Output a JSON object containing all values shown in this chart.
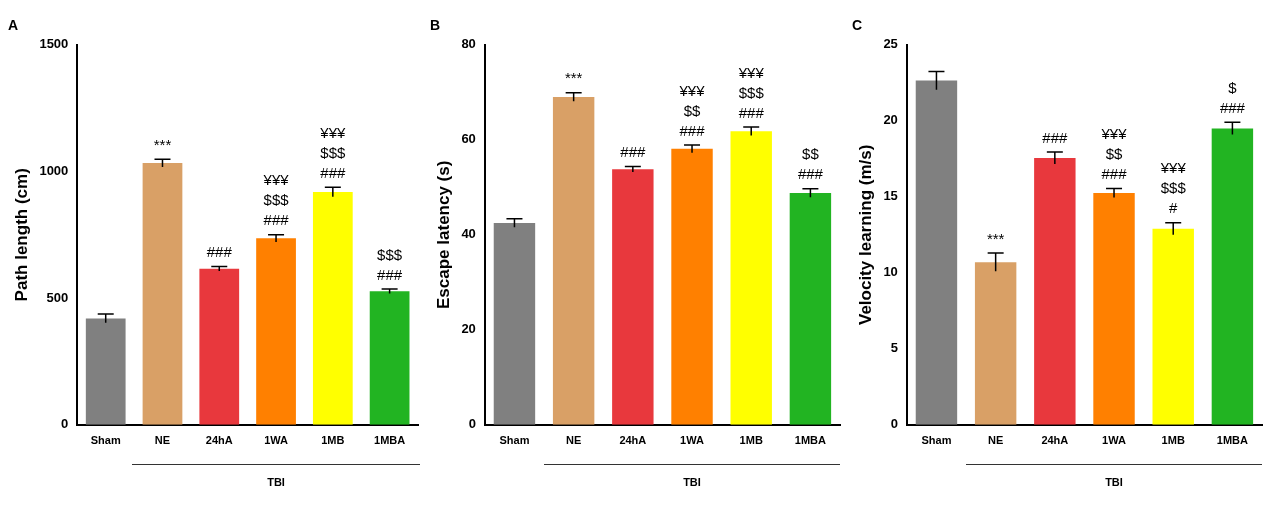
{
  "chart_data": [
    {
      "type": "bar",
      "title": "A",
      "categories": [
        "Sham",
        "NE",
        "24hA",
        "1WA",
        "1MB",
        "1MBA"
      ],
      "ylabel": "Path length (cm)",
      "colors": [
        "#808080",
        "#d9a066",
        "#e8383d",
        "#ff8000",
        "#ffff00",
        "#22b422"
      ],
      "values": [
        420,
        1033,
        616,
        736,
        919,
        527
      ],
      "errors": [
        17,
        15,
        9,
        14,
        19,
        9
      ],
      "ylim": [
        0,
        1500
      ],
      "yticks": [
        0,
        500,
        1000,
        1500
      ],
      "grid": false,
      "legend": false,
      "annotations": [
        "***",
        "###",
        "¥¥¥\n$$$\n###",
        "¥¥¥\n$$$\n###",
        "$$$\n###",
        "TBI"
      ]
    },
    {
      "type": "bar",
      "title": "B",
      "categories": [
        "Sham",
        "NE",
        "24hA",
        "1WA",
        "1MB",
        "1MBA"
      ],
      "ylabel": "Escape latency (s)",
      "colors": [
        "#808080",
        "#d9a066",
        "#e8383d",
        "#ff8000",
        "#ffff00",
        "#22b422"
      ],
      "values": [
        42.5,
        69,
        53.8,
        58.1,
        61.8,
        48.8
      ],
      "errors": [
        0.9,
        0.9,
        0.6,
        0.8,
        0.9,
        0.9
      ],
      "ylim": [
        0,
        80
      ],
      "yticks": [
        0,
        20,
        40,
        60,
        80
      ],
      "grid": false,
      "legend": false,
      "annotations": [
        "***",
        "###",
        "¥¥¥\n$$\n###",
        "¥¥¥\n$$$\n###",
        "$$\n###",
        "TBI"
      ]
    },
    {
      "type": "bar",
      "title": "C",
      "categories": [
        "Sham",
        "NE",
        "24hA",
        "1WA",
        "1MB",
        "1MBA"
      ],
      "ylabel": "Velocity learning (m/s)",
      "colors": [
        "#808080",
        "#d9a066",
        "#e8383d",
        "#ff8000",
        "#ffff00",
        "#22b422"
      ],
      "values": [
        22.65,
        10.7,
        17.55,
        15.25,
        12.9,
        19.5
      ],
      "errors": [
        0.6,
        0.6,
        0.4,
        0.3,
        0.4,
        0.4
      ],
      "ylim": [
        0,
        25
      ],
      "yticks": [
        0,
        5,
        10,
        15,
        20,
        25
      ],
      "grid": false,
      "legend": false,
      "annotations": [
        "***",
        "###",
        "¥¥¥\n$$\n###",
        "¥¥¥\n$$$\n#",
        "$\n###",
        "TBI"
      ]
    }
  ]
}
